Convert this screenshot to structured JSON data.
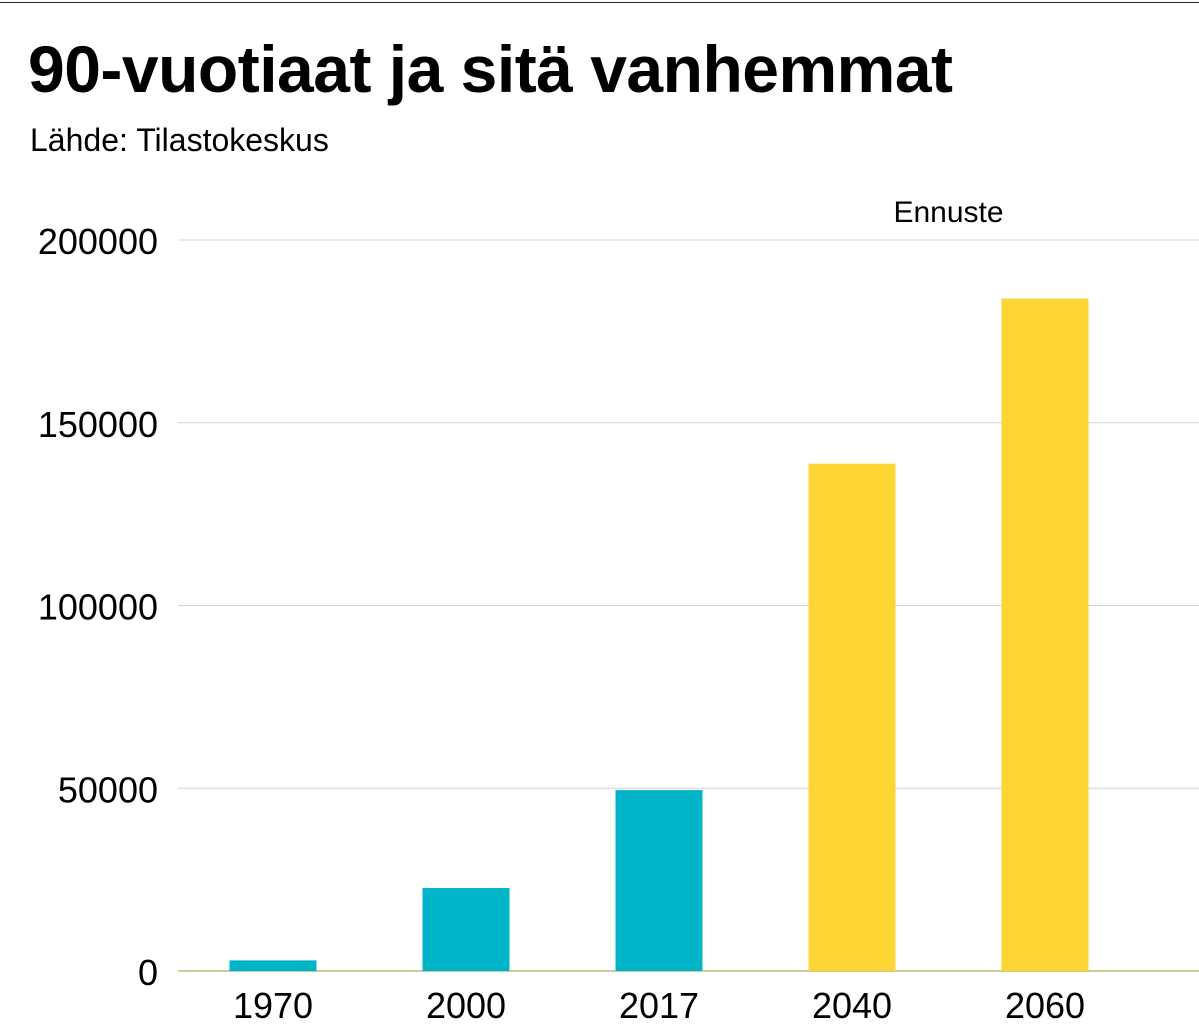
{
  "header": {
    "title": "90-vuotiaat ja sitä vanhemmat",
    "source": "Lähde: Tilastokeskus"
  },
  "colors": {
    "history": "#00b5c8",
    "forecast": "#fdd535",
    "grid": "#d4d4d4",
    "baseline": "#b7bc7a"
  },
  "chart_data": {
    "type": "bar",
    "title": "90-vuotiaat ja sitä vanhemmat",
    "subtitle": "Lähde: Tilastokeskus",
    "xlabel": "",
    "ylabel": "",
    "categories": [
      "1970",
      "2000",
      "2017",
      "2040",
      "2060"
    ],
    "values": [
      2900,
      22700,
      49500,
      138800,
      184000
    ],
    "forecast": [
      false,
      false,
      false,
      true,
      true
    ],
    "annotations": [
      {
        "text": "Ennuste",
        "category": "2040–2060"
      }
    ],
    "ylim": [
      0,
      200000
    ],
    "yticks": [
      0,
      50000,
      100000,
      150000,
      200000
    ],
    "ytick_labels": [
      "0",
      "50000",
      "100000",
      "150000",
      "200000"
    ],
    "grid": true,
    "legend": "none"
  }
}
